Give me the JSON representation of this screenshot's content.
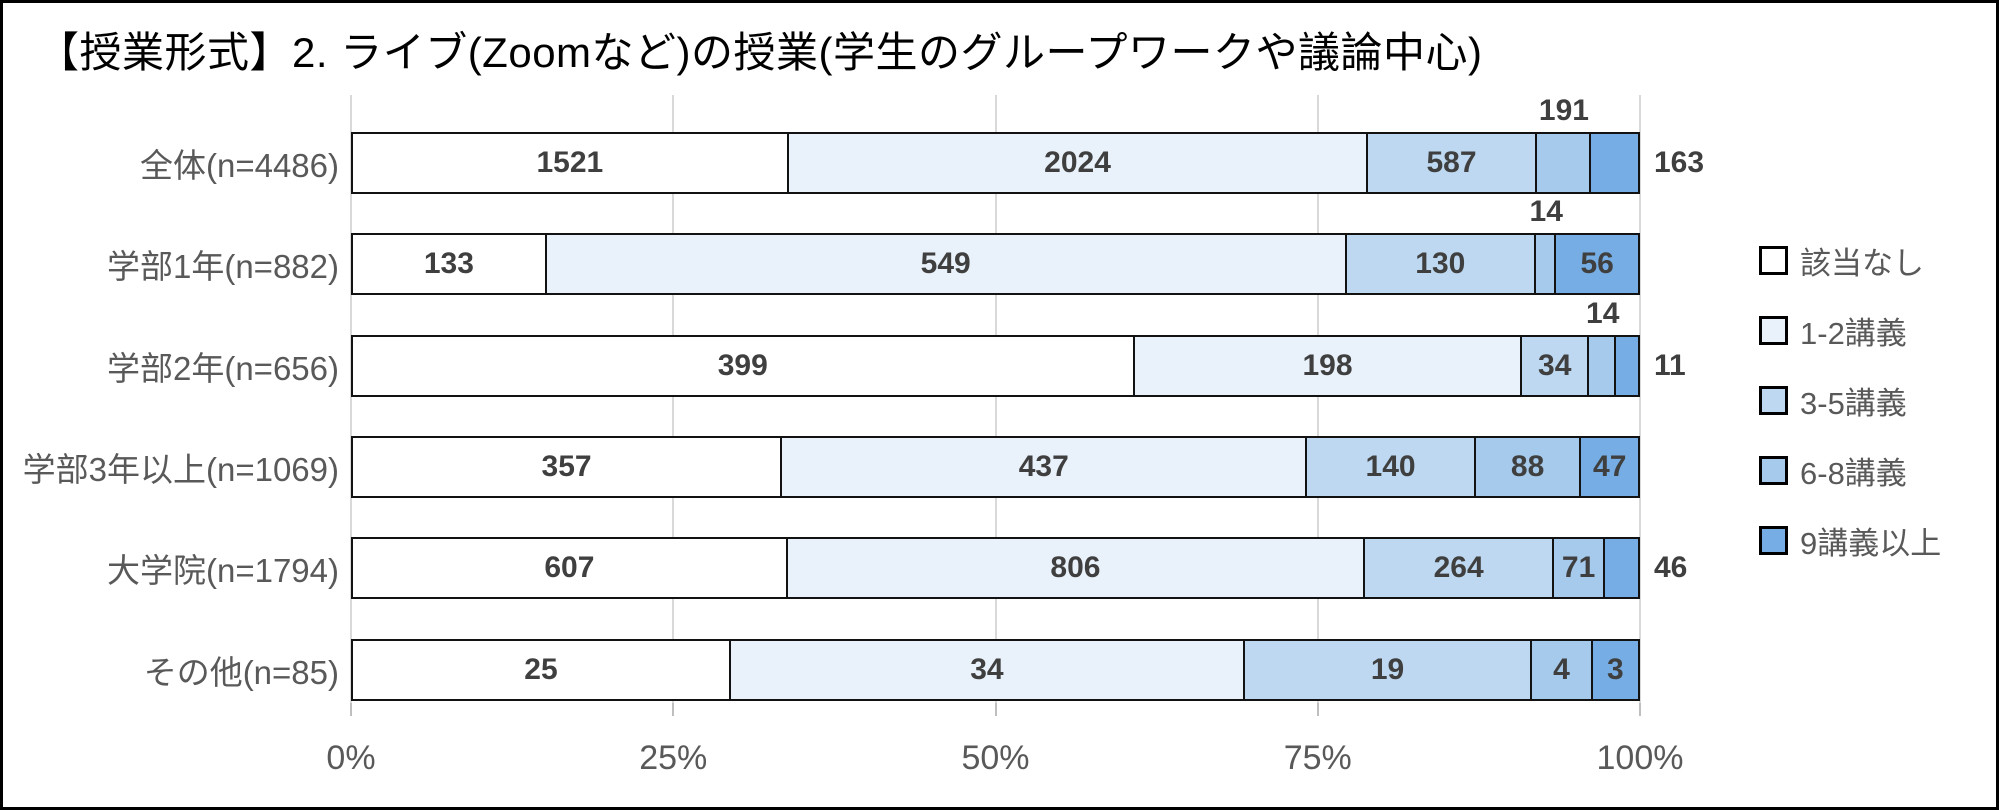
{
  "title": "【授業形式】2. ライブ(Zoomなど)の授業(学生のグループワークや議論中心)",
  "colors": {
    "bar_border": "#121212",
    "gridline": "#d9d9d9",
    "tick": "#bfbfbf",
    "value_label": "#3f3f3f",
    "axis_label": "#595959",
    "category_label": "#595959",
    "legend_label": "#595959"
  },
  "legend": {
    "position": "right",
    "items": [
      {
        "label": "該当なし",
        "color": "#ffffff"
      },
      {
        "label": "1-2講義",
        "color": "#e9f2fa"
      },
      {
        "label": "3-5講義",
        "color": "#bdd8f0"
      },
      {
        "label": "6-8講義",
        "color": "#a5caec"
      },
      {
        "label": "9講義以上",
        "color": "#75ade4"
      }
    ]
  },
  "chart_data": {
    "type": "bar",
    "variant": "horizontal-100percent-stacked",
    "title": "【授業形式】2. ライブ(Zoomなど)の授業(学生のグループワークや議論中心)",
    "categories": [
      "全体(n=4486)",
      "学部1年(n=882)",
      "学部2年(n=656)",
      "学部3年以上(n=1069)",
      "大学院(n=1794)",
      "その他(n=85)"
    ],
    "totals": [
      4486,
      882,
      656,
      1069,
      1794,
      85
    ],
    "series": [
      {
        "name": "該当なし",
        "color": "#ffffff",
        "values": [
          1521,
          133,
          399,
          357,
          607,
          25
        ]
      },
      {
        "name": "1-2講義",
        "color": "#e9f2fa",
        "values": [
          2024,
          549,
          198,
          437,
          806,
          34
        ]
      },
      {
        "name": "3-5講義",
        "color": "#bdd8f0",
        "values": [
          587,
          130,
          34,
          140,
          264,
          19
        ]
      },
      {
        "name": "6-8講義",
        "color": "#a5caec",
        "values": [
          191,
          14,
          14,
          88,
          71,
          4
        ]
      },
      {
        "name": "9講義以上",
        "color": "#75ade4",
        "values": [
          163,
          56,
          11,
          47,
          46,
          3
        ]
      }
    ],
    "value_label_positions": [
      [
        "inside",
        "inside",
        "inside",
        "above",
        "right"
      ],
      [
        "inside",
        "inside",
        "inside",
        "above",
        "inside"
      ],
      [
        "inside",
        "inside",
        "inside",
        "above",
        "right"
      ],
      [
        "inside",
        "inside",
        "inside",
        "inside",
        "inside"
      ],
      [
        "inside",
        "inside",
        "inside",
        "inside",
        "right"
      ],
      [
        "inside",
        "inside",
        "inside",
        "inside",
        "inside"
      ]
    ],
    "xlabel": "",
    "ylabel": "",
    "xticks": [
      "0%",
      "25%",
      "50%",
      "75%",
      "100%"
    ],
    "xlim": [
      0,
      100
    ],
    "grid": true,
    "legend_position": "right"
  }
}
